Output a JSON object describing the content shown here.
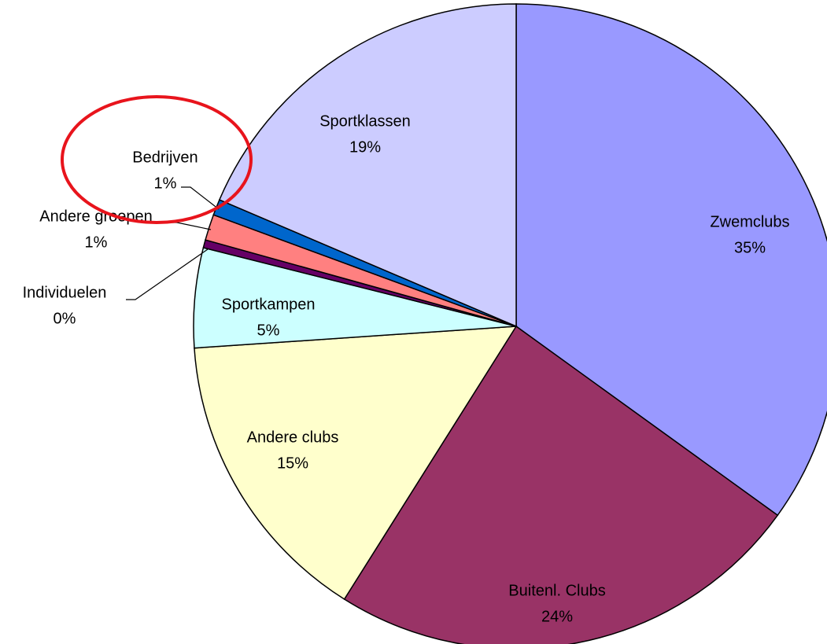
{
  "chart_data": {
    "type": "pie",
    "categories": [
      "Zwemclubs",
      "Buitenl. Clubs",
      "Andere clubs",
      "Sportkampen",
      "Individuelen",
      "Andere groepen",
      "Bedrijven",
      "Sportklassen"
    ],
    "values": [
      35,
      24,
      15,
      5,
      0.4,
      1.3,
      0.8,
      18.6
    ],
    "value_labels": [
      "35%",
      "24%",
      "15%",
      "5%",
      "0%",
      "1%",
      "1%",
      "19%"
    ],
    "colors": [
      "#9999ff",
      "#993366",
      "#ffffcc",
      "#ccffff",
      "#660066",
      "#ff8080",
      "#0066cc",
      "#ccccff"
    ]
  }
}
